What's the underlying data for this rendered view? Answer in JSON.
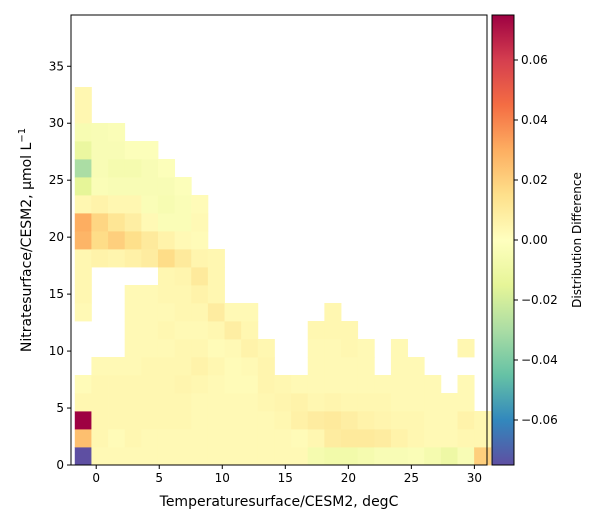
{
  "chart_data": {
    "type": "heatmap",
    "xlabel": "Temperaturesurface/CESM2,  degC",
    "ylabel_main": "Nitratesurface/CESM2,  μmol L",
    "ylabel_sup": "−1",
    "colorbar_label": "Distribution Difference",
    "xlim": [
      -2,
      31
    ],
    "ylim": [
      0,
      39.5
    ],
    "x_bin_width": 1.32,
    "y_bin_width": 1.58,
    "x_ticks": [
      {
        "v": 0,
        "label": "0"
      },
      {
        "v": 5,
        "label": "5"
      },
      {
        "v": 10,
        "label": "10"
      },
      {
        "v": 15,
        "label": "15"
      },
      {
        "v": 20,
        "label": "20"
      },
      {
        "v": 25,
        "label": "25"
      },
      {
        "v": 30,
        "label": "30"
      }
    ],
    "y_ticks": [
      {
        "v": 0,
        "label": "0"
      },
      {
        "v": 5,
        "label": "5"
      },
      {
        "v": 10,
        "label": "10"
      },
      {
        "v": 15,
        "label": "15"
      },
      {
        "v": 20,
        "label": "20"
      },
      {
        "v": 25,
        "label": "25"
      },
      {
        "v": 30,
        "label": "30"
      },
      {
        "v": 35,
        "label": "35"
      }
    ],
    "colorbar": {
      "vmin": -0.075,
      "vmax": 0.075,
      "ticks": [
        {
          "v": -0.06,
          "label": "−0.06"
        },
        {
          "v": -0.04,
          "label": "−0.04"
        },
        {
          "v": -0.02,
          "label": "−0.02"
        },
        {
          "v": 0.0,
          "label": "0.00"
        },
        {
          "v": 0.02,
          "label": "0.02"
        },
        {
          "v": 0.04,
          "label": "0.04"
        },
        {
          "v": 0.06,
          "label": "0.06"
        }
      ],
      "colors": [
        "#5e4fa2",
        "#3288bd",
        "#66c2a5",
        "#abdda4",
        "#e6f598",
        "#ffffbf",
        "#fee08b",
        "#fdae61",
        "#f46d43",
        "#d53e4f",
        "#9e0142"
      ]
    },
    "cells_note": "each cell: [x_bin_start, y_bin_start, value]",
    "cells": [
      [
        -1.7,
        0,
        -0.075
      ],
      [
        -1.7,
        1.58,
        0.025
      ],
      [
        -1.7,
        3.16,
        0.075
      ],
      [
        -1.7,
        4.74,
        0.004
      ],
      [
        -1.7,
        6.32,
        0.002
      ],
      [
        -1.7,
        17.38,
        0.004
      ],
      [
        -1.7,
        18.96,
        0.028
      ],
      [
        -1.7,
        20.54,
        0.03
      ],
      [
        -1.7,
        22.12,
        0.004
      ],
      [
        -1.7,
        23.7,
        -0.015
      ],
      [
        -1.7,
        25.28,
        -0.03
      ],
      [
        -1.7,
        26.86,
        -0.012
      ],
      [
        -1.7,
        28.44,
        -0.005
      ],
      [
        -1.7,
        30.02,
        0.004
      ],
      [
        -1.7,
        31.6,
        0.004
      ],
      [
        -1.7,
        12.64,
        0.003
      ],
      [
        -1.7,
        14.22,
        0.004
      ],
      [
        -1.7,
        15.8,
        0.004
      ],
      [
        -0.38,
        0,
        0.003
      ],
      [
        -0.38,
        1.58,
        0.004
      ],
      [
        -0.38,
        3.16,
        0.004
      ],
      [
        -0.38,
        4.74,
        0.004
      ],
      [
        -0.38,
        6.32,
        0.004
      ],
      [
        -0.38,
        7.9,
        0.003
      ],
      [
        -0.38,
        17.38,
        0.006
      ],
      [
        -0.38,
        18.96,
        0.016
      ],
      [
        -0.38,
        20.54,
        0.018
      ],
      [
        -0.38,
        22.12,
        0.006
      ],
      [
        -0.38,
        23.7,
        -0.003
      ],
      [
        -0.38,
        25.28,
        -0.004
      ],
      [
        -0.38,
        26.86,
        -0.004
      ],
      [
        -0.38,
        28.44,
        -0.004
      ],
      [
        0.94,
        0,
        0.003
      ],
      [
        0.94,
        1.58,
        0.002
      ],
      [
        0.94,
        3.16,
        0.004
      ],
      [
        0.94,
        4.74,
        0.004
      ],
      [
        0.94,
        6.32,
        0.004
      ],
      [
        0.94,
        7.9,
        0.003
      ],
      [
        0.94,
        17.38,
        0.005
      ],
      [
        0.94,
        18.96,
        0.02
      ],
      [
        0.94,
        20.54,
        0.012
      ],
      [
        0.94,
        22.12,
        0.004
      ],
      [
        0.94,
        23.7,
        -0.004
      ],
      [
        0.94,
        25.28,
        -0.006
      ],
      [
        0.94,
        26.86,
        -0.004
      ],
      [
        0.94,
        28.44,
        -0.003
      ],
      [
        2.26,
        0,
        0.003
      ],
      [
        2.26,
        1.58,
        0.004
      ],
      [
        2.26,
        3.16,
        0.004
      ],
      [
        2.26,
        4.74,
        0.004
      ],
      [
        2.26,
        6.32,
        0.004
      ],
      [
        2.26,
        7.9,
        0.003
      ],
      [
        2.26,
        9.48,
        0.003
      ],
      [
        2.26,
        11.06,
        0.003
      ],
      [
        2.26,
        12.64,
        0.003
      ],
      [
        2.26,
        14.22,
        0.003
      ],
      [
        2.26,
        17.38,
        0.007
      ],
      [
        2.26,
        18.96,
        0.015
      ],
      [
        2.26,
        20.54,
        0.008
      ],
      [
        2.26,
        22.12,
        0.004
      ],
      [
        2.26,
        23.7,
        -0.004
      ],
      [
        2.26,
        25.28,
        -0.006
      ],
      [
        2.26,
        26.86,
        -0.002
      ],
      [
        3.58,
        0,
        0.003
      ],
      [
        3.58,
        1.58,
        0.003
      ],
      [
        3.58,
        3.16,
        0.004
      ],
      [
        3.58,
        4.74,
        0.004
      ],
      [
        3.58,
        6.32,
        0.004
      ],
      [
        3.58,
        7.9,
        0.004
      ],
      [
        3.58,
        9.48,
        0.003
      ],
      [
        3.58,
        11.06,
        0.003
      ],
      [
        3.58,
        12.64,
        0.003
      ],
      [
        3.58,
        14.22,
        0.003
      ],
      [
        3.58,
        17.38,
        0.009
      ],
      [
        3.58,
        18.96,
        0.01
      ],
      [
        3.58,
        20.54,
        0.003
      ],
      [
        3.58,
        22.12,
        -0.003
      ],
      [
        3.58,
        23.7,
        -0.004
      ],
      [
        3.58,
        25.28,
        -0.004
      ],
      [
        3.58,
        26.86,
        -0.002
      ],
      [
        4.9,
        0,
        0.003
      ],
      [
        4.9,
        1.58,
        0.003
      ],
      [
        4.9,
        3.16,
        0.004
      ],
      [
        4.9,
        4.74,
        0.004
      ],
      [
        4.9,
        6.32,
        0.004
      ],
      [
        4.9,
        7.9,
        0.004
      ],
      [
        4.9,
        9.48,
        0.003
      ],
      [
        4.9,
        11.06,
        0.004
      ],
      [
        4.9,
        12.64,
        0.003
      ],
      [
        4.9,
        14.22,
        0.004
      ],
      [
        4.9,
        15.8,
        0.004
      ],
      [
        4.9,
        17.38,
        0.016
      ],
      [
        4.9,
        18.96,
        0.006
      ],
      [
        4.9,
        20.54,
        -0.003
      ],
      [
        4.9,
        22.12,
        -0.005
      ],
      [
        4.9,
        23.7,
        -0.004
      ],
      [
        4.9,
        25.28,
        -0.002
      ],
      [
        6.22,
        0,
        0.003
      ],
      [
        6.22,
        1.58,
        0.003
      ],
      [
        6.22,
        3.16,
        0.004
      ],
      [
        6.22,
        4.74,
        0.004
      ],
      [
        6.22,
        6.32,
        0.005
      ],
      [
        6.22,
        7.9,
        0.004
      ],
      [
        6.22,
        9.48,
        0.004
      ],
      [
        6.22,
        11.06,
        0.003
      ],
      [
        6.22,
        12.64,
        0.004
      ],
      [
        6.22,
        14.22,
        0.004
      ],
      [
        6.22,
        15.8,
        0.005
      ],
      [
        6.22,
        17.38,
        0.01
      ],
      [
        6.22,
        18.96,
        0.003
      ],
      [
        6.22,
        20.54,
        -0.003
      ],
      [
        6.22,
        22.12,
        -0.003
      ],
      [
        6.22,
        23.7,
        -0.002
      ],
      [
        7.54,
        0,
        0.003
      ],
      [
        7.54,
        1.58,
        0.003
      ],
      [
        7.54,
        3.16,
        0.003
      ],
      [
        7.54,
        4.74,
        0.003
      ],
      [
        7.54,
        6.32,
        0.004
      ],
      [
        7.54,
        7.9,
        0.006
      ],
      [
        7.54,
        9.48,
        0.004
      ],
      [
        7.54,
        11.06,
        0.003
      ],
      [
        7.54,
        12.64,
        0.004
      ],
      [
        7.54,
        14.22,
        0.006
      ],
      [
        7.54,
        15.8,
        0.01
      ],
      [
        7.54,
        17.38,
        0.005
      ],
      [
        7.54,
        18.96,
        0.002
      ],
      [
        7.54,
        20.54,
        0.003
      ],
      [
        7.54,
        22.12,
        0.002
      ],
      [
        8.86,
        0,
        0.003
      ],
      [
        8.86,
        1.58,
        0.003
      ],
      [
        8.86,
        3.16,
        0.003
      ],
      [
        8.86,
        4.74,
        0.003
      ],
      [
        8.86,
        6.32,
        0.003
      ],
      [
        8.86,
        7.9,
        0.004
      ],
      [
        8.86,
        9.48,
        0.002
      ],
      [
        8.86,
        11.06,
        0.004
      ],
      [
        8.86,
        12.64,
        0.009
      ],
      [
        8.86,
        14.22,
        0.004
      ],
      [
        8.86,
        15.8,
        0.004
      ],
      [
        8.86,
        17.38,
        0.004
      ],
      [
        10.18,
        0,
        0.003
      ],
      [
        10.18,
        1.58,
        0.003
      ],
      [
        10.18,
        3.16,
        0.003
      ],
      [
        10.18,
        4.74,
        0.003
      ],
      [
        10.18,
        6.32,
        0.002
      ],
      [
        10.18,
        7.9,
        0.002
      ],
      [
        10.18,
        9.48,
        0.003
      ],
      [
        10.18,
        11.06,
        0.008
      ],
      [
        10.18,
        12.64,
        0.003
      ],
      [
        11.5,
        0,
        0.003
      ],
      [
        11.5,
        1.58,
        0.003
      ],
      [
        11.5,
        3.16,
        0.003
      ],
      [
        11.5,
        4.74,
        0.003
      ],
      [
        11.5,
        6.32,
        0.002
      ],
      [
        11.5,
        7.9,
        0.003
      ],
      [
        11.5,
        9.48,
        0.006
      ],
      [
        11.5,
        11.06,
        0.004
      ],
      [
        11.5,
        12.64,
        0.003
      ],
      [
        12.82,
        0,
        0.003
      ],
      [
        12.82,
        1.58,
        0.003
      ],
      [
        12.82,
        3.16,
        0.003
      ],
      [
        12.82,
        4.74,
        0.004
      ],
      [
        12.82,
        6.32,
        0.005
      ],
      [
        12.82,
        7.9,
        0.005
      ],
      [
        12.82,
        9.48,
        0.004
      ],
      [
        14.14,
        0,
        0.003
      ],
      [
        14.14,
        1.58,
        0.003
      ],
      [
        14.14,
        3.16,
        0.004
      ],
      [
        14.14,
        4.74,
        0.005
      ],
      [
        14.14,
        6.32,
        0.004
      ],
      [
        15.46,
        0,
        0.003
      ],
      [
        15.46,
        1.58,
        0.002
      ],
      [
        15.46,
        3.16,
        0.007
      ],
      [
        15.46,
        4.74,
        0.006
      ],
      [
        15.46,
        6.32,
        0.003
      ],
      [
        16.78,
        0,
        -0.006
      ],
      [
        16.78,
        1.58,
        0.004
      ],
      [
        16.78,
        3.16,
        0.009
      ],
      [
        16.78,
        4.74,
        0.004
      ],
      [
        16.78,
        6.32,
        0.003
      ],
      [
        16.78,
        7.9,
        0.003
      ],
      [
        16.78,
        9.48,
        0.003
      ],
      [
        16.78,
        11.06,
        0.004
      ],
      [
        18.1,
        0,
        -0.008
      ],
      [
        18.1,
        1.58,
        0.009
      ],
      [
        18.1,
        3.16,
        0.01
      ],
      [
        18.1,
        4.74,
        0.005
      ],
      [
        18.1,
        6.32,
        0.003
      ],
      [
        18.1,
        7.9,
        0.003
      ],
      [
        18.1,
        9.48,
        0.003
      ],
      [
        18.1,
        11.06,
        0.004
      ],
      [
        18.1,
        12.64,
        0.004
      ],
      [
        19.42,
        0,
        -0.008
      ],
      [
        19.42,
        1.58,
        0.01
      ],
      [
        19.42,
        3.16,
        0.008
      ],
      [
        19.42,
        4.74,
        0.004
      ],
      [
        19.42,
        6.32,
        0.003
      ],
      [
        19.42,
        7.9,
        0.003
      ],
      [
        19.42,
        9.48,
        0.004
      ],
      [
        19.42,
        11.06,
        0.004
      ],
      [
        20.74,
        0,
        -0.006
      ],
      [
        20.74,
        1.58,
        0.01
      ],
      [
        20.74,
        3.16,
        0.006
      ],
      [
        20.74,
        4.74,
        0.004
      ],
      [
        20.74,
        6.32,
        0.003
      ],
      [
        20.74,
        7.9,
        0.003
      ],
      [
        20.74,
        9.48,
        0.003
      ],
      [
        22.06,
        0,
        -0.004
      ],
      [
        22.06,
        1.58,
        0.009
      ],
      [
        22.06,
        3.16,
        0.005
      ],
      [
        22.06,
        4.74,
        0.004
      ],
      [
        22.06,
        6.32,
        0.003
      ],
      [
        23.38,
        0,
        -0.004
      ],
      [
        23.38,
        1.58,
        0.006
      ],
      [
        23.38,
        3.16,
        0.004
      ],
      [
        23.38,
        4.74,
        0.003
      ],
      [
        23.38,
        6.32,
        0.003
      ],
      [
        23.38,
        7.9,
        0.003
      ],
      [
        23.38,
        9.48,
        0.003
      ],
      [
        24.7,
        0,
        -0.003
      ],
      [
        24.7,
        1.58,
        0.004
      ],
      [
        24.7,
        3.16,
        0.004
      ],
      [
        24.7,
        4.74,
        0.003
      ],
      [
        24.7,
        6.32,
        0.003
      ],
      [
        24.7,
        7.9,
        0.003
      ],
      [
        26.02,
        0,
        -0.006
      ],
      [
        26.02,
        1.58,
        0.003
      ],
      [
        26.02,
        3.16,
        0.003
      ],
      [
        26.02,
        4.74,
        0.003
      ],
      [
        26.02,
        6.32,
        0.003
      ],
      [
        27.34,
        0,
        -0.01
      ],
      [
        27.34,
        1.58,
        0.003
      ],
      [
        27.34,
        3.16,
        0.003
      ],
      [
        27.34,
        4.74,
        0.003
      ],
      [
        28.66,
        0,
        -0.004
      ],
      [
        28.66,
        1.58,
        0.004
      ],
      [
        28.66,
        3.16,
        0.006
      ],
      [
        28.66,
        4.74,
        0.003
      ],
      [
        28.66,
        6.32,
        0.003
      ],
      [
        28.66,
        9.48,
        0.004
      ],
      [
        29.98,
        0,
        0.02
      ],
      [
        29.98,
        1.58,
        0.004
      ],
      [
        29.98,
        3.16,
        0.004
      ]
    ]
  }
}
